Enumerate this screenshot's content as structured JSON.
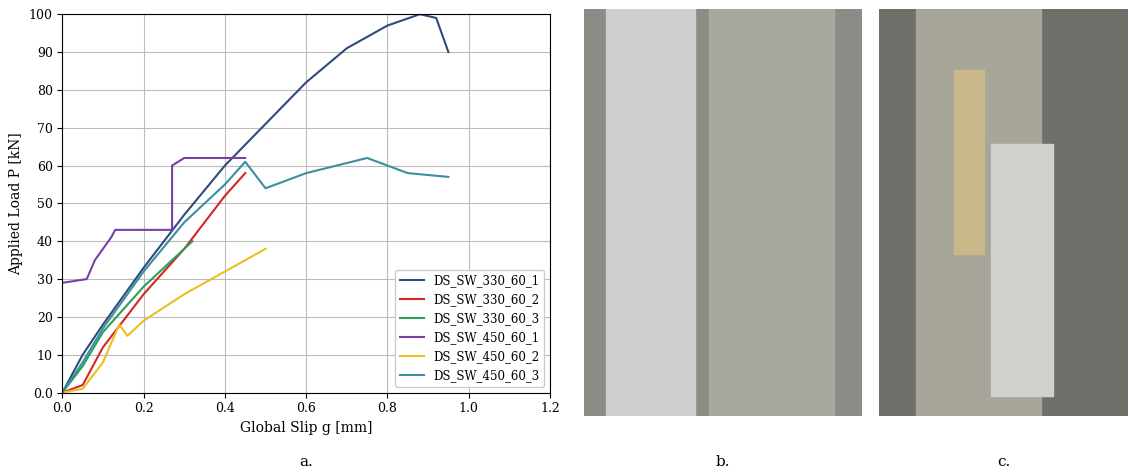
{
  "chart_data": {
    "type": "line",
    "x_label": "Global Slip g [mm]",
    "y_label": "Applied Load P [kN]",
    "xlim": [
      0.0,
      1.2
    ],
    "xticks": [
      0.0,
      0.2,
      0.4,
      0.6,
      0.8,
      1.0,
      1.2
    ],
    "ylim": [
      0,
      100
    ],
    "yticks": [
      {
        "value": 0,
        "label": "0.0"
      },
      10,
      20,
      30,
      40,
      50,
      60,
      70,
      80,
      90,
      100
    ],
    "grid": true,
    "legend": "lower right",
    "series": [
      {
        "name": "DS_SW_330_60_1",
        "color": "#2f4b7c",
        "x": [
          0.0,
          0.05,
          0.1,
          0.2,
          0.3,
          0.4,
          0.5,
          0.6,
          0.7,
          0.8,
          0.88,
          0.92,
          0.95
        ],
        "values": [
          0,
          10,
          18,
          33,
          47,
          60,
          71,
          82,
          91,
          97,
          100,
          99,
          90
        ]
      },
      {
        "name": "DS_SW_330_60_2",
        "color": "#d62728",
        "x": [
          0.0,
          0.05,
          0.1,
          0.2,
          0.3,
          0.4,
          0.45
        ],
        "values": [
          0,
          2,
          12,
          26,
          38,
          52,
          58
        ]
      },
      {
        "name": "DS_SW_330_60_3",
        "color": "#2ca05a",
        "x": [
          0.0,
          0.05,
          0.1,
          0.2,
          0.32
        ],
        "values": [
          0,
          7,
          16,
          28,
          40
        ]
      },
      {
        "name": "DS_SW_450_60_1",
        "color": "#7b3fa0",
        "x": [
          0.0,
          0.06,
          0.08,
          0.1,
          0.12,
          0.13,
          0.27,
          0.27,
          0.3,
          0.45
        ],
        "values": [
          29,
          30,
          35,
          38,
          41,
          43,
          43,
          60,
          62,
          62
        ]
      },
      {
        "name": "DS_SW_450_60_2",
        "color": "#e8c020",
        "x": [
          0.0,
          0.05,
          0.1,
          0.14,
          0.16,
          0.2,
          0.3,
          0.4,
          0.5
        ],
        "values": [
          0,
          1,
          8,
          18,
          15,
          19,
          26,
          32,
          38
        ]
      },
      {
        "name": "DS_SW_450_60_3",
        "color": "#3a8fa0",
        "x": [
          0.0,
          0.05,
          0.1,
          0.2,
          0.3,
          0.4,
          0.45,
          0.5,
          0.6,
          0.75,
          0.85,
          0.95
        ],
        "values": [
          0,
          8,
          17,
          32,
          45,
          55,
          61,
          54,
          58,
          62,
          58,
          57
        ]
      }
    ]
  },
  "panels": {
    "labels": [
      "a.",
      "b.",
      "c."
    ]
  }
}
